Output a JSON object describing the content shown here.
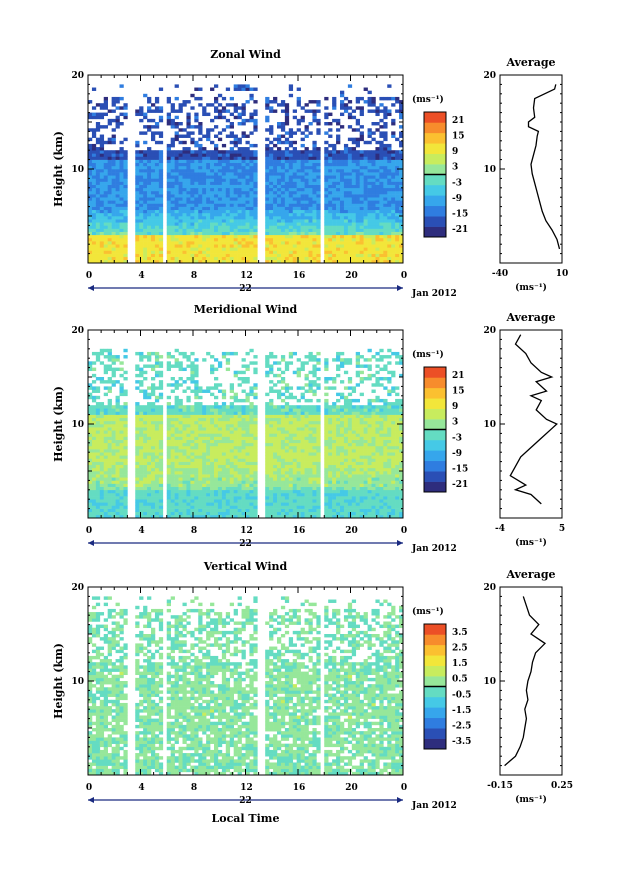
{
  "chart_data": [
    {
      "type": "heatmap",
      "title": "Zonal Wind",
      "ylabel": "Height (km)",
      "ylim": [
        0,
        20
      ],
      "yticks": [
        "20",
        "10"
      ],
      "xlim": [
        0,
        24
      ],
      "xticks": [
        "0",
        "4",
        "8",
        "12",
        "16",
        "20",
        "0"
      ],
      "date_label": "22",
      "month_label": "Jan 2012",
      "colorbar": {
        "unit": "(ms⁻¹)",
        "range": [
          -24,
          24
        ],
        "ticks": [
          "21",
          "15",
          "9",
          "3",
          "-3",
          "-9",
          "-15",
          "-21"
        ],
        "colors": [
          "#2e2d7d",
          "#2a4fb5",
          "#2f7de0",
          "#36a6ec",
          "#45c9e6",
          "#64dcc2",
          "#96e79a",
          "#c8ec5e",
          "#f2e63a",
          "#fbc030",
          "#f78c2c",
          "#ec4f26"
        ]
      },
      "average_profile": {
        "title": "Average",
        "unit": "(ms⁻¹)",
        "xlim": [
          -40,
          10
        ],
        "xticks": [
          "-40",
          "10"
        ],
        "yticks": [
          "20",
          "10"
        ],
        "height": [
          1.5,
          2.5,
          3.5,
          4.5,
          5.5,
          6.5,
          7.5,
          8.5,
          9.5,
          10.5,
          11.5,
          12.5,
          13.5,
          14.0,
          14.5,
          15.0,
          15.5,
          16.5,
          17.5,
          18.5,
          19.0
        ],
        "value": [
          8,
          6,
          2,
          -3,
          -6,
          -8,
          -10,
          -12,
          -14,
          -15,
          -13,
          -11,
          -10,
          -9,
          -17,
          -17,
          -12,
          -13,
          -12,
          4,
          5
        ]
      },
      "field": {
        "low_level_wind": 10,
        "mid_level_wind": -12,
        "upper_level_wind": -18,
        "data_top_km": 19
      }
    },
    {
      "type": "heatmap",
      "title": "Meridional Wind",
      "ylabel": "Height (km)",
      "ylim": [
        0,
        20
      ],
      "yticks": [
        "20",
        "10"
      ],
      "xlim": [
        0,
        24
      ],
      "xticks": [
        "0",
        "4",
        "8",
        "12",
        "16",
        "20",
        "0"
      ],
      "date_label": "22",
      "month_label": "Jan 2012",
      "colorbar": {
        "unit": "(ms⁻¹)",
        "range": [
          -24,
          24
        ],
        "ticks": [
          "21",
          "15",
          "9",
          "3",
          "-3",
          "-9",
          "-15",
          "-21"
        ],
        "colors": [
          "#2e2d7d",
          "#2a4fb5",
          "#2f7de0",
          "#36a6ec",
          "#45c9e6",
          "#64dcc2",
          "#96e79a",
          "#c8ec5e",
          "#f2e63a",
          "#fbc030",
          "#f78c2c",
          "#ec4f26"
        ]
      },
      "average_profile": {
        "title": "Average",
        "unit": "(ms⁻¹)",
        "xlim": [
          -6,
          6
        ],
        "xticks": [
          "-4",
          "5"
        ],
        "yticks": [
          "20",
          "10"
        ],
        "height": [
          1.5,
          2.5,
          3.0,
          3.5,
          4.5,
          5.5,
          6.5,
          7.5,
          8.5,
          9.5,
          10.0,
          10.5,
          11.5,
          12.5,
          13.0,
          13.5,
          14.5,
          15.0,
          15.5,
          16.5,
          17.5,
          18.5,
          19.5
        ],
        "value": [
          2,
          0,
          -3,
          -1,
          -4,
          -3,
          -2,
          0,
          2,
          4,
          5,
          3,
          1,
          2,
          0,
          3,
          1,
          4,
          2,
          0,
          -1,
          -3,
          -2
        ]
      },
      "field": {
        "low_level_wind": -3,
        "mid_level_wind": 5,
        "upper_level_wind": -2,
        "data_top_km": 18
      }
    },
    {
      "type": "heatmap",
      "title": "Vertical Wind",
      "ylabel": "Height (km)",
      "xlabel": "Local Time",
      "ylim": [
        0,
        20
      ],
      "yticks": [
        "20",
        "10"
      ],
      "xlim": [
        0,
        24
      ],
      "xticks": [
        "0",
        "4",
        "8",
        "12",
        "16",
        "20",
        "0"
      ],
      "date_label": "22",
      "month_label": "Jan 2012",
      "colorbar": {
        "unit": "(ms⁻¹)",
        "range": [
          -4,
          4
        ],
        "ticks": [
          "3.5",
          "2.5",
          "1.5",
          "0.5",
          "-0.5",
          "-1.5",
          "-2.5",
          "-3.5"
        ],
        "colors": [
          "#2e2d7d",
          "#2a4fb5",
          "#2f7de0",
          "#36a6ec",
          "#45c9e6",
          "#64dcc2",
          "#96e79a",
          "#c8ec5e",
          "#f2e63a",
          "#fbc030",
          "#f78c2c",
          "#ec4f26"
        ]
      },
      "average_profile": {
        "title": "Average",
        "unit": "(ms⁻¹)",
        "xlim": [
          -0.15,
          0.25
        ],
        "xticks": [
          "-0.15",
          "0.25"
        ],
        "yticks": [
          "20",
          "10"
        ],
        "height": [
          1.0,
          2.0,
          3.0,
          4.0,
          5.0,
          6.0,
          7.0,
          8.0,
          9.0,
          10.0,
          11.0,
          12.0,
          13.0,
          14.0,
          15.0,
          16.0,
          17.0,
          18.0,
          19.0
        ],
        "value": [
          -0.12,
          -0.05,
          -0.02,
          0.0,
          0.01,
          0.02,
          0.01,
          0.03,
          0.02,
          0.03,
          0.05,
          0.06,
          0.08,
          0.14,
          0.05,
          0.1,
          0.04,
          0.02,
          0.0
        ]
      },
      "field": {
        "low_level_wind": 0.1,
        "mid_level_wind": 0.2,
        "upper_level_wind": 0.0,
        "data_top_km": 19
      }
    }
  ],
  "page": {
    "gap_hours": [
      3.3,
      5.8,
      13.2,
      17.8
    ]
  }
}
